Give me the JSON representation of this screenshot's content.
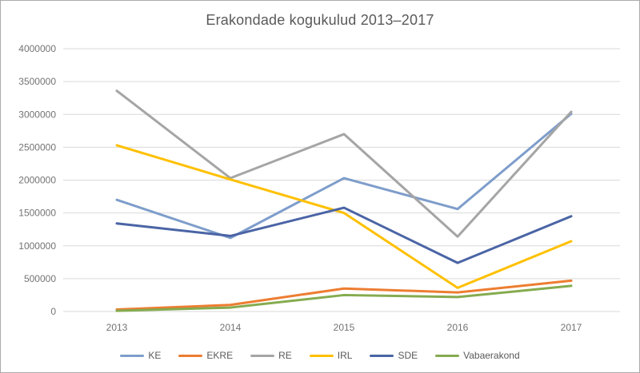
{
  "chart_data": {
    "type": "line",
    "title": "Erakondade kogukulud 2013–2017",
    "categories": [
      "2013",
      "2014",
      "2015",
      "2016",
      "2017"
    ],
    "series": [
      {
        "name": "KE",
        "color": "#7E9DCB",
        "values": [
          1700000,
          1120000,
          2030000,
          1560000,
          3010000
        ]
      },
      {
        "name": "EKRE",
        "color": "#ED7D31",
        "values": [
          30000,
          100000,
          350000,
          290000,
          470000
        ]
      },
      {
        "name": "RE",
        "color": "#A5A5A5",
        "values": [
          3360000,
          2030000,
          2700000,
          1140000,
          3040000
        ]
      },
      {
        "name": "IRL",
        "color": "#FFC000",
        "values": [
          2530000,
          2010000,
          1500000,
          360000,
          1070000
        ]
      },
      {
        "name": "SDE",
        "color": "#4A64A5",
        "values": [
          1340000,
          1150000,
          1580000,
          740000,
          1450000
        ]
      },
      {
        "name": "Vabaerakond",
        "color": "#85AB4F",
        "values": [
          10000,
          60000,
          250000,
          220000,
          390000
        ]
      }
    ],
    "ylim": [
      0,
      4000000
    ],
    "ytick_step": 500000,
    "yticks": [
      "0",
      "500000",
      "1000000",
      "1500000",
      "2000000",
      "2500000",
      "3000000",
      "3500000",
      "4000000"
    ],
    "grid": true,
    "legend_position": "bottom"
  },
  "colors": {
    "gridline": "#D9D9D9",
    "title_text": "#595959",
    "tick_text": "#737373",
    "legend_text": "#595959",
    "frame_border": "#ABABAB",
    "background": "#FFFFFF"
  }
}
